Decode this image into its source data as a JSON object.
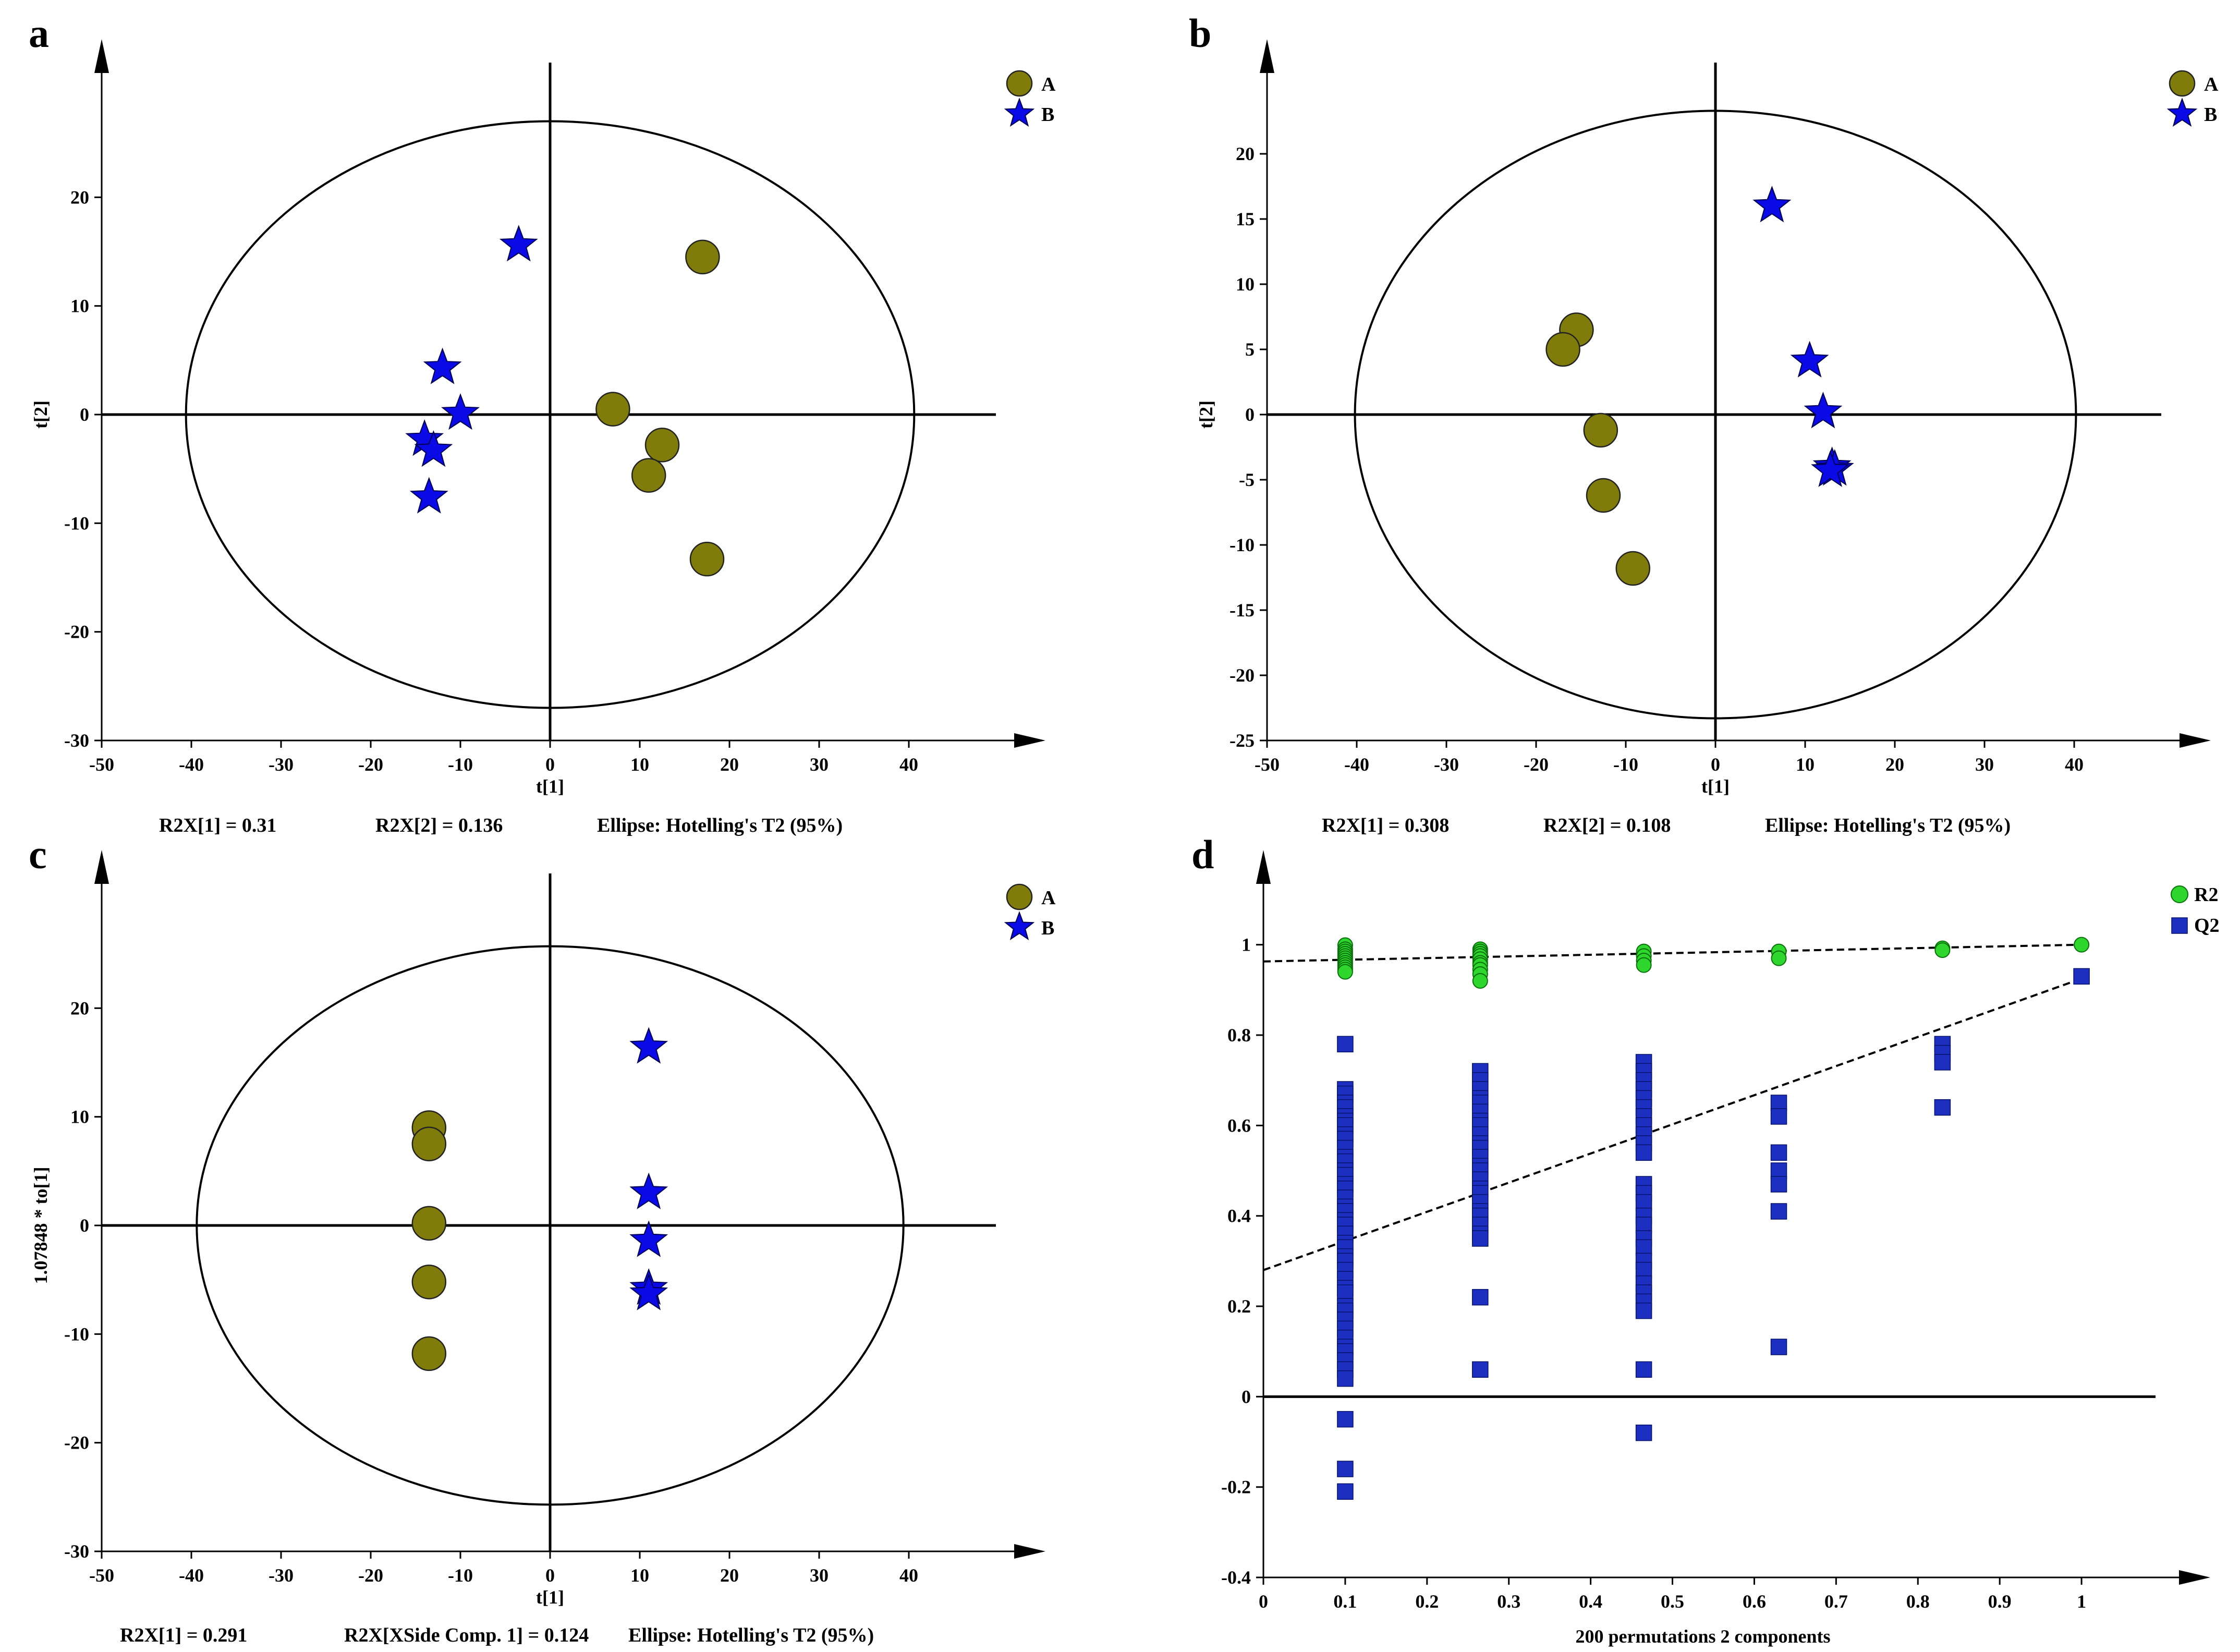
{
  "chart_data": [
    {
      "id": "a",
      "type": "scatter",
      "panel_label": "a",
      "xlabel": "t[1]",
      "ylabel": "t[2]",
      "xlim": [
        -50,
        50
      ],
      "ylim": [
        -30,
        30
      ],
      "xticks": [
        -50,
        -40,
        -30,
        -20,
        -10,
        0,
        10,
        20,
        30,
        40
      ],
      "yticks": [
        -30,
        -20,
        -10,
        0,
        10,
        20
      ],
      "ellipse": {
        "rx": 40.6,
        "ry": 27
      },
      "legend": [
        "A",
        "B"
      ],
      "legend_position": "top-right",
      "footnotes": [
        "R2X[1] = 0.31",
        "R2X[2] = 0.136",
        "Ellipse: Hotelling's T2 (95%)"
      ],
      "series": [
        {
          "name": "A",
          "marker": "circle",
          "points": [
            [
              17,
              14.5
            ],
            [
              7,
              0.5
            ],
            [
              12.5,
              -2.8
            ],
            [
              11,
              -5.6
            ],
            [
              17.5,
              -13.3
            ]
          ]
        },
        {
          "name": "B",
          "marker": "star",
          "points": [
            [
              -3.5,
              15.6
            ],
            [
              -12,
              4.3
            ],
            [
              -10,
              0.1
            ],
            [
              -14,
              -2.3
            ],
            [
              -13,
              -3.3
            ],
            [
              -13.5,
              -7.6
            ]
          ]
        }
      ]
    },
    {
      "id": "b",
      "type": "scatter",
      "panel_label": "b",
      "xlabel": "t[1]",
      "ylabel": "t[2]",
      "xlim": [
        -50,
        50
      ],
      "ylim": [
        -25,
        25
      ],
      "xticks": [
        -50,
        -40,
        -30,
        -20,
        -10,
        0,
        10,
        20,
        30,
        40
      ],
      "yticks": [
        -25,
        -20,
        -15,
        -10,
        -5,
        0,
        5,
        10,
        15,
        20
      ],
      "ellipse": {
        "rx": 40.2,
        "ry": 23.3
      },
      "legend": [
        "A",
        "B"
      ],
      "legend_position": "top-right",
      "footnotes": [
        "R2X[1] = 0.308",
        "R2X[2] = 0.108",
        "Ellipse: Hotelling's T2 (95%)"
      ],
      "series": [
        {
          "name": "A",
          "marker": "circle",
          "points": [
            [
              -15.5,
              6.5
            ],
            [
              -17,
              5
            ],
            [
              -12.8,
              -1.2
            ],
            [
              -12.5,
              -6.2
            ],
            [
              -9.2,
              -11.8
            ]
          ]
        },
        {
          "name": "B",
          "marker": "star",
          "points": [
            [
              6.3,
              16
            ],
            [
              10.5,
              4.1
            ],
            [
              12,
              0.2
            ],
            [
              13,
              -4
            ],
            [
              13.3,
              -4.2
            ],
            [
              12.8,
              -4.3
            ]
          ]
        }
      ]
    },
    {
      "id": "c",
      "type": "scatter",
      "panel_label": "c",
      "xlabel": "t[1]",
      "ylabel": "1.07848 * to[1]",
      "xlim": [
        -50,
        50
      ],
      "ylim": [
        -30,
        30
      ],
      "xticks": [
        -50,
        -40,
        -30,
        -20,
        -10,
        0,
        10,
        20,
        30,
        40
      ],
      "yticks": [
        -30,
        -20,
        -10,
        0,
        10,
        20
      ],
      "ellipse": {
        "rx": 39.4,
        "ry": 25.7
      },
      "legend": [
        "A",
        "B"
      ],
      "legend_position": "top-right",
      "footnotes": [
        "R2X[1] = 0.291",
        "R2X[XSide Comp. 1] = 0.124",
        "Ellipse: Hotelling's T2 (95%)"
      ],
      "series": [
        {
          "name": "A",
          "marker": "circle",
          "points": [
            [
              -13.5,
              9
            ],
            [
              -13.5,
              7.5
            ],
            [
              -13.5,
              0.2
            ],
            [
              -13.5,
              -5.2
            ],
            [
              -13.5,
              -11.8
            ]
          ]
        },
        {
          "name": "B",
          "marker": "star",
          "points": [
            [
              11,
              16.4
            ],
            [
              11,
              3
            ],
            [
              11,
              -1.4
            ],
            [
              11,
              -5.8
            ],
            [
              11,
              -6.3
            ]
          ]
        }
      ]
    },
    {
      "id": "d",
      "type": "scatter",
      "panel_label": "d",
      "xlabel": "200 permutations 2 components",
      "ylabel": "",
      "xlim": [
        0,
        1.1
      ],
      "ylim": [
        -0.4,
        1.1
      ],
      "xticks": [
        0,
        0.1,
        0.2,
        0.3,
        0.4,
        0.5,
        0.6,
        0.7,
        0.8,
        0.9,
        1
      ],
      "yticks": [
        -0.4,
        -0.2,
        0,
        0.2,
        0.4,
        0.6,
        0.8,
        1
      ],
      "legend": [
        "R2",
        "Q2"
      ],
      "legend_position": "top-right",
      "regression_lines": [
        {
          "series": "R2",
          "intercept": 0.963,
          "slope": 0.037
        },
        {
          "series": "Q2",
          "intercept": 0.28,
          "slope": 0.645
        }
      ],
      "series": [
        {
          "name": "R2",
          "marker": "circle",
          "groups": [
            {
              "x": 0.1,
              "y": [
                0.999,
                0.99,
                0.985,
                0.98,
                0.975,
                0.97,
                0.965,
                0.96,
                0.955,
                0.95,
                0.945,
                0.94
              ]
            },
            {
              "x": 0.265,
              "y": [
                0.99,
                0.985,
                0.98,
                0.975,
                0.968,
                0.96,
                0.955,
                0.945,
                0.935,
                0.92
              ]
            },
            {
              "x": 0.465,
              "y": [
                0.985,
                0.975,
                0.965,
                0.955
              ]
            },
            {
              "x": 0.63,
              "y": [
                0.985,
                0.97
              ]
            },
            {
              "x": 0.83,
              "y": [
                0.992,
                0.988
              ]
            },
            {
              "x": 1.0,
              "y": [
                1.0
              ]
            }
          ]
        },
        {
          "name": "Q2",
          "marker": "square",
          "groups": [
            {
              "x": 0.1,
              "y": [
                0.78,
                0.68,
                0.67,
                0.65,
                0.64,
                0.62,
                0.61,
                0.6,
                0.58,
                0.57,
                0.55,
                0.53,
                0.52,
                0.5,
                0.49,
                0.47,
                0.46,
                0.44,
                0.42,
                0.41,
                0.39,
                0.38,
                0.36,
                0.34,
                0.33,
                0.31,
                0.3,
                0.28,
                0.26,
                0.24,
                0.23,
                0.2,
                0.19,
                0.17,
                0.15,
                0.13,
                0.11,
                0.1,
                0.08,
                0.06,
                0.04,
                -0.05,
                -0.16,
                -0.21
              ]
            },
            {
              "x": 0.265,
              "y": [
                0.72,
                0.7,
                0.68,
                0.66,
                0.65,
                0.63,
                0.61,
                0.6,
                0.58,
                0.56,
                0.55,
                0.53,
                0.51,
                0.5,
                0.48,
                0.46,
                0.45,
                0.43,
                0.41,
                0.4,
                0.38,
                0.36,
                0.35,
                0.22,
                0.06
              ]
            },
            {
              "x": 0.465,
              "y": [
                0.74,
                0.72,
                0.7,
                0.68,
                0.66,
                0.64,
                0.62,
                0.6,
                0.58,
                0.56,
                0.54,
                0.47,
                0.45,
                0.43,
                0.4,
                0.38,
                0.35,
                0.33,
                0.3,
                0.28,
                0.25,
                0.23,
                0.21,
                0.19,
                0.06,
                -0.08
              ]
            },
            {
              "x": 0.63,
              "y": [
                0.65,
                0.62,
                0.54,
                0.5,
                0.47,
                0.41,
                0.11
              ]
            },
            {
              "x": 0.83,
              "y": [
                0.78,
                0.76,
                0.74,
                0.64
              ]
            },
            {
              "x": 1.0,
              "y": [
                0.93
              ]
            }
          ]
        }
      ]
    }
  ]
}
